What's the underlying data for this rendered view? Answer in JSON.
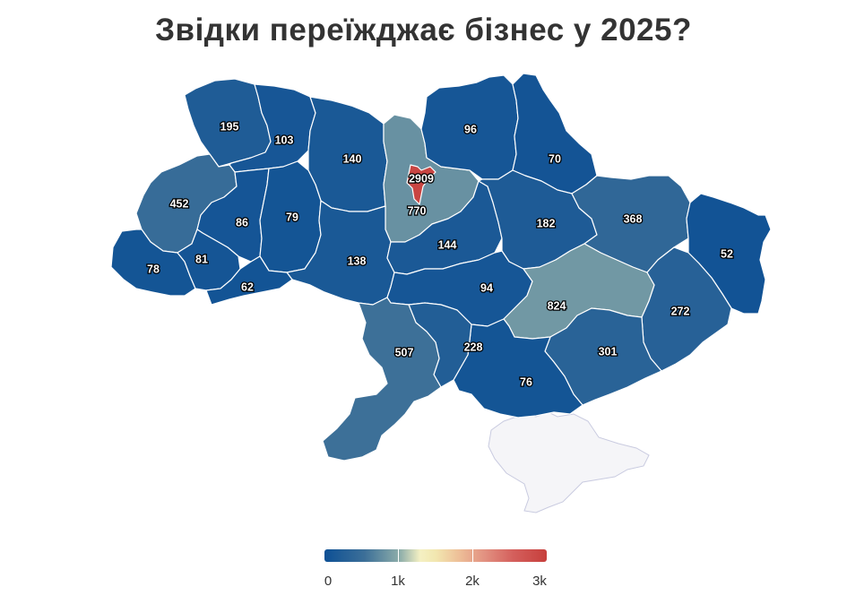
{
  "title": "Звідки переїжджає бізнес у 2025?",
  "color_scale": {
    "min": 0,
    "max": 3000,
    "stops": [
      "#0d5095",
      "#3c6f98",
      "#8eaeaa",
      "#f4f0c3",
      "#eec199",
      "#d45f5c",
      "#c73f3c"
    ],
    "no_data_color": "#f5f5f8"
  },
  "legend": {
    "ticks": [
      {
        "label": "0",
        "value": 0
      },
      {
        "label": "1k",
        "value": 1000
      },
      {
        "label": "2k",
        "value": 2000
      },
      {
        "label": "3k",
        "value": 3000
      }
    ]
  },
  "regions": [
    {
      "id": "volyn",
      "value": 195,
      "label": "195"
    },
    {
      "id": "rivne",
      "value": 103,
      "label": "103"
    },
    {
      "id": "zhytomyr",
      "value": 140,
      "label": "140"
    },
    {
      "id": "kyiv-oblast",
      "value": 770,
      "label": "770"
    },
    {
      "id": "kyiv-city",
      "value": 2909,
      "label": "2909"
    },
    {
      "id": "chernihiv",
      "value": 96,
      "label": "96"
    },
    {
      "id": "sumy",
      "value": 70,
      "label": "70"
    },
    {
      "id": "lviv",
      "value": 452,
      "label": "452"
    },
    {
      "id": "ternopil",
      "value": 86,
      "label": "86"
    },
    {
      "id": "khmelnytskyi",
      "value": 79,
      "label": "79"
    },
    {
      "id": "poltava",
      "value": 182,
      "label": "182"
    },
    {
      "id": "kharkiv",
      "value": 368,
      "label": "368"
    },
    {
      "id": "luhansk",
      "value": 52,
      "label": "52"
    },
    {
      "id": "cherkasy",
      "value": 144,
      "label": "144"
    },
    {
      "id": "vinnytsia",
      "value": 138,
      "label": "138"
    },
    {
      "id": "zakarpattia",
      "value": 78,
      "label": "78"
    },
    {
      "id": "ivano-frankivsk",
      "value": 81,
      "label": "81"
    },
    {
      "id": "chernivtsi",
      "value": 62,
      "label": "62"
    },
    {
      "id": "kirovohrad",
      "value": 94,
      "label": "94"
    },
    {
      "id": "dnipropetrovsk",
      "value": 824,
      "label": "824"
    },
    {
      "id": "donetsk",
      "value": 272,
      "label": "272"
    },
    {
      "id": "odesa",
      "value": 507,
      "label": "507"
    },
    {
      "id": "mykolaiv",
      "value": 228,
      "label": "228"
    },
    {
      "id": "zaporizhzhia",
      "value": 301,
      "label": "301"
    },
    {
      "id": "kherson",
      "value": 76,
      "label": "76"
    }
  ]
}
